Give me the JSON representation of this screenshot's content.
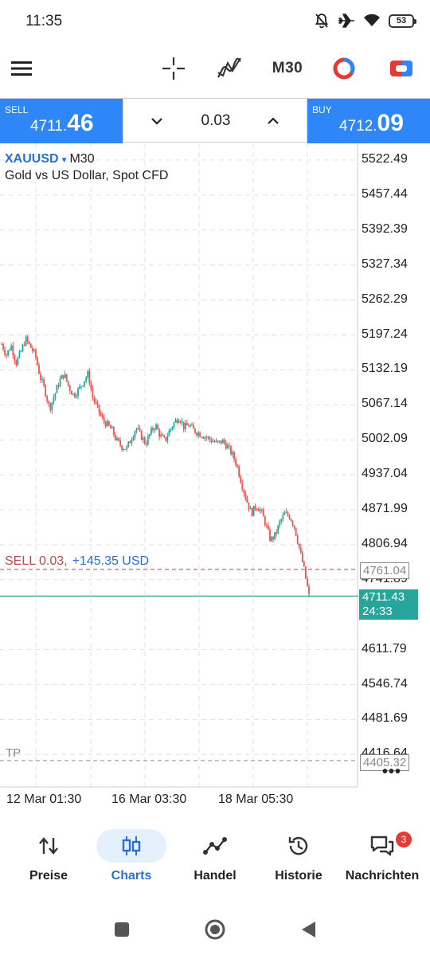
{
  "status": {
    "time": "11:35",
    "battery": "53"
  },
  "toolbar": {
    "timeframe": "M30"
  },
  "trade": {
    "sell_label": "SELL",
    "sell_price_main": "4711.",
    "sell_price_big": "46",
    "buy_label": "BUY",
    "buy_price_main": "4712.",
    "buy_price_big": "09",
    "volume": "0.03"
  },
  "chart": {
    "symbol": "XAUUSD",
    "symbol_timeframe": "M30",
    "description": "Gold vs US Dollar, Spot CFD",
    "order_label": "SELL 0.03,",
    "order_pnl": "+145.35 USD",
    "order_price": "4761.04",
    "tp_label": "TP",
    "tp_price": "4405.32",
    "bid_price": "4711.43",
    "bar_timer": "24:33",
    "more": "•••",
    "colors": {
      "bull": "#26a69a",
      "bear": "#ef5350",
      "grid": "#e0e0e0",
      "bid_line": "#26a69a"
    }
  },
  "chart_data": {
    "type": "candlestick",
    "symbol": "XAUUSD",
    "timeframe": "M30",
    "y_ticks": [
      "5522.49",
      "5457.44",
      "5392.39",
      "5327.34",
      "5262.29",
      "5197.24",
      "5132.19",
      "5067.14",
      "5002.09",
      "4937.04",
      "4871.99",
      "4806.94",
      "4741.89",
      "4611.79",
      "4546.74",
      "4481.69",
      "4416.64"
    ],
    "x_ticks": [
      "12 Mar 01:30",
      "16 Mar 03:30",
      "18 Mar 05:30"
    ],
    "ylim": [
      4400,
      5540
    ],
    "close_path": [
      5180,
      5160,
      5178,
      5145,
      5165,
      5190,
      5175,
      5160,
      5120,
      5095,
      5060,
      5085,
      5110,
      5125,
      5100,
      5085,
      5095,
      5110,
      5125,
      5080,
      5060,
      5040,
      5030,
      5020,
      5000,
      4990,
      4985,
      5005,
      5025,
      5010,
      4995,
      5015,
      5030,
      5010,
      5000,
      5020,
      5035,
      5045,
      5025,
      5030,
      5020,
      5015,
      5010,
      5005,
      5000,
      4995,
      5000,
      4990,
      4975,
      4955,
      4920,
      4890,
      4865,
      4880,
      4870,
      4845,
      4815,
      4825,
      4850,
      4865,
      4860,
      4840,
      4800,
      4760,
      4711
    ],
    "grid": true
  },
  "nav": {
    "items": [
      {
        "label": "Preise",
        "icon": "arrows-up-down-icon"
      },
      {
        "label": "Charts",
        "icon": "candles-icon"
      },
      {
        "label": "Handel",
        "icon": "trade-line-icon"
      },
      {
        "label": "Historie",
        "icon": "history-icon"
      },
      {
        "label": "Nachrichten",
        "icon": "messages-icon",
        "badge": "3"
      }
    ]
  }
}
